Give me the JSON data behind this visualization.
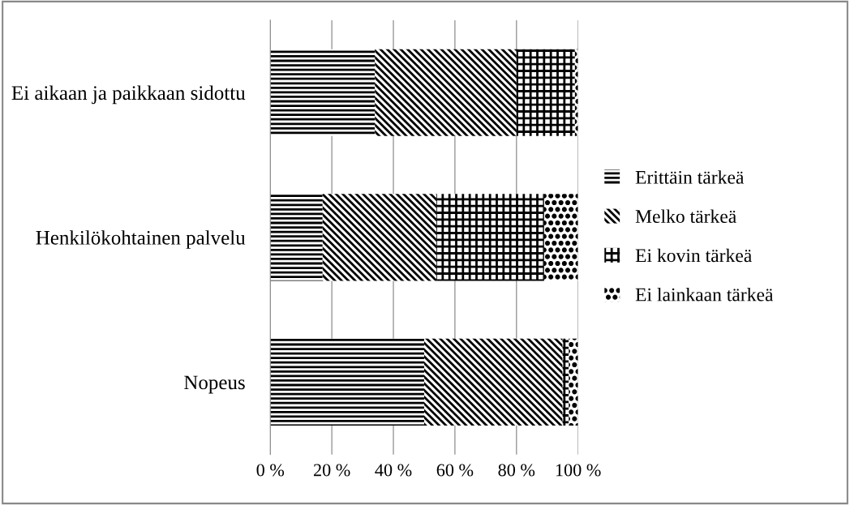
{
  "chart_data": {
    "type": "bar",
    "orientation": "horizontal",
    "stacked": true,
    "categories": [
      "Ei aikaan ja paikkaan sidottu",
      "Henkilökohtainen palvelu",
      "Nopeus"
    ],
    "series": [
      {
        "name": "Erittäin tärkeä",
        "color": "#000000",
        "values": [
          34,
          17,
          50
        ]
      },
      {
        "name": "Melko tärkeä",
        "color": "#000000",
        "values": [
          46,
          37,
          45
        ]
      },
      {
        "name": "Ei kovin tärkeä",
        "color": "#000000",
        "values": [
          19,
          35,
          2
        ]
      },
      {
        "name": "Ei lainkaan tärkeä",
        "color": "#000000",
        "values": [
          1,
          11,
          3
        ]
      }
    ],
    "xlim": [
      0,
      100
    ],
    "xticks": [
      {
        "value": 0,
        "label": "0 %"
      },
      {
        "value": 20,
        "label": "20 %"
      },
      {
        "value": 40,
        "label": "40 %"
      },
      {
        "value": 60,
        "label": "60 %"
      },
      {
        "value": 80,
        "label": "80 %"
      },
      {
        "value": 100,
        "label": "100 %"
      }
    ],
    "grid": "x",
    "legend": "right"
  }
}
